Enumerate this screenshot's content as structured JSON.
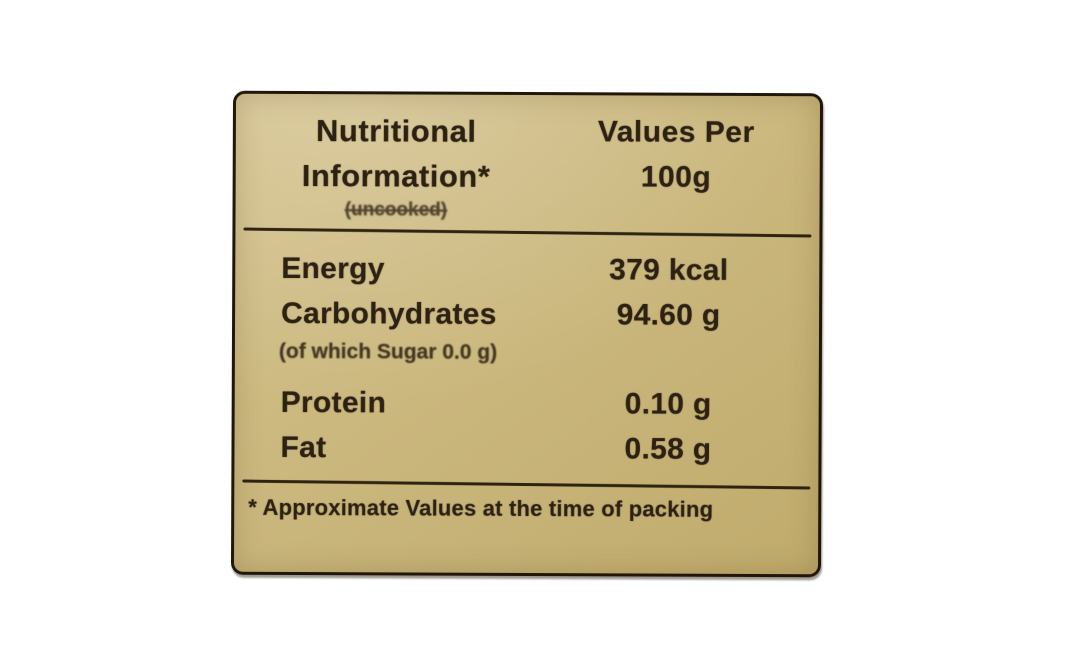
{
  "photo": {
    "background_color": "#ffffff"
  },
  "label": {
    "colors": {
      "background": "#cbb87e",
      "background_light": "#d4c28d",
      "background_dark": "#c0ab6c",
      "text": "#2d2113",
      "border": "#211709"
    },
    "header": {
      "title_line1": "Nutritional",
      "title_line2": "Information*",
      "subnote": "(uncooked)",
      "values_line1": "Values Per",
      "values_line2": "100g"
    },
    "rows": [
      {
        "name": "Energy",
        "value": "379 kcal"
      },
      {
        "name": "Carbohydrates",
        "value": "94.60 g"
      },
      {
        "name": "Protein",
        "value": "0.10 g"
      },
      {
        "name": "Fat",
        "value": "0.58 g"
      }
    ],
    "sugar_note": "(of which Sugar 0.0 g)",
    "footnote": "* Approximate Values at the time of packing"
  }
}
